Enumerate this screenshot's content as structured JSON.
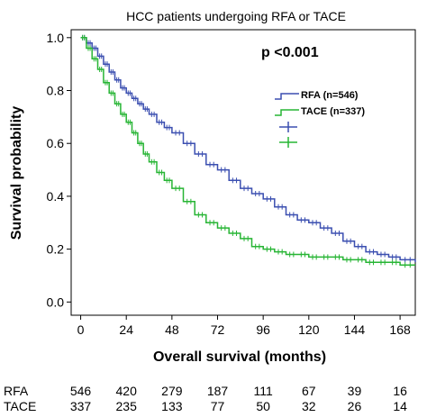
{
  "chart_data": {
    "type": "line",
    "title": "HCC patients undergoing RFA or TACE",
    "xlabel": "Overall survival (months)",
    "ylabel": "Survival probability",
    "xlim": [
      -5,
      176
    ],
    "ylim": [
      -0.05,
      1.03
    ],
    "x_ticks": [
      0,
      24,
      48,
      72,
      96,
      120,
      144,
      168
    ],
    "x_tick_labels": [
      "0",
      "24",
      "48",
      "72",
      "96",
      "120",
      "144",
      "168"
    ],
    "y_ticks": [
      0.0,
      0.2,
      0.4,
      0.6,
      0.8,
      1.0
    ],
    "y_tick_labels": [
      "0.0",
      "0.2",
      "0.4",
      "0.6",
      "0.8",
      "1.0"
    ],
    "annotation": "p <0.001",
    "colors": {
      "rfa": "#3b4fb0",
      "tace": "#27b534"
    },
    "legend": [
      {
        "label": "RFA (n=546)",
        "color": "#3b4fb0"
      },
      {
        "label": "TACE (n=337)",
        "color": "#27b534"
      },
      {
        "label": "",
        "color": "#3b4fb0",
        "symbol": "plus"
      },
      {
        "label": "",
        "color": "#27b534",
        "symbol": "plus"
      }
    ],
    "series": [
      {
        "name": "RFA (n=546)",
        "color": "#3b4fb0",
        "x": [
          0,
          3,
          6,
          9,
          12,
          15,
          18,
          21,
          24,
          27,
          30,
          33,
          36,
          40,
          44,
          48,
          54,
          60,
          66,
          72,
          78,
          84,
          90,
          96,
          102,
          108,
          114,
          120,
          126,
          132,
          138,
          144,
          150,
          156,
          162,
          168,
          176
        ],
        "y": [
          1.0,
          0.98,
          0.96,
          0.93,
          0.9,
          0.87,
          0.84,
          0.81,
          0.79,
          0.77,
          0.75,
          0.73,
          0.71,
          0.68,
          0.66,
          0.64,
          0.6,
          0.56,
          0.52,
          0.5,
          0.46,
          0.43,
          0.41,
          0.39,
          0.36,
          0.33,
          0.31,
          0.3,
          0.28,
          0.26,
          0.23,
          0.21,
          0.19,
          0.18,
          0.17,
          0.16,
          0.15
        ]
      },
      {
        "name": "TACE (n=337)",
        "color": "#27b534",
        "x": [
          0,
          3,
          6,
          9,
          12,
          15,
          18,
          21,
          24,
          27,
          30,
          33,
          36,
          40,
          44,
          48,
          54,
          60,
          66,
          72,
          78,
          84,
          90,
          96,
          102,
          108,
          114,
          120,
          126,
          132,
          138,
          144,
          150,
          156,
          162,
          168,
          176
        ],
        "y": [
          1.0,
          0.96,
          0.92,
          0.88,
          0.83,
          0.79,
          0.75,
          0.71,
          0.68,
          0.64,
          0.6,
          0.56,
          0.53,
          0.49,
          0.46,
          0.43,
          0.38,
          0.33,
          0.3,
          0.28,
          0.26,
          0.24,
          0.21,
          0.2,
          0.19,
          0.18,
          0.18,
          0.17,
          0.17,
          0.17,
          0.16,
          0.16,
          0.15,
          0.15,
          0.15,
          0.14,
          0.14
        ]
      }
    ],
    "risk_table": {
      "rows": [
        {
          "label": "RFA",
          "values": [
            "546",
            "420",
            "279",
            "187",
            "111",
            "67",
            "39",
            "16"
          ]
        },
        {
          "label": "TACE",
          "values": [
            "337",
            "235",
            "133",
            "77",
            "50",
            "32",
            "26",
            "14"
          ]
        }
      ]
    }
  }
}
